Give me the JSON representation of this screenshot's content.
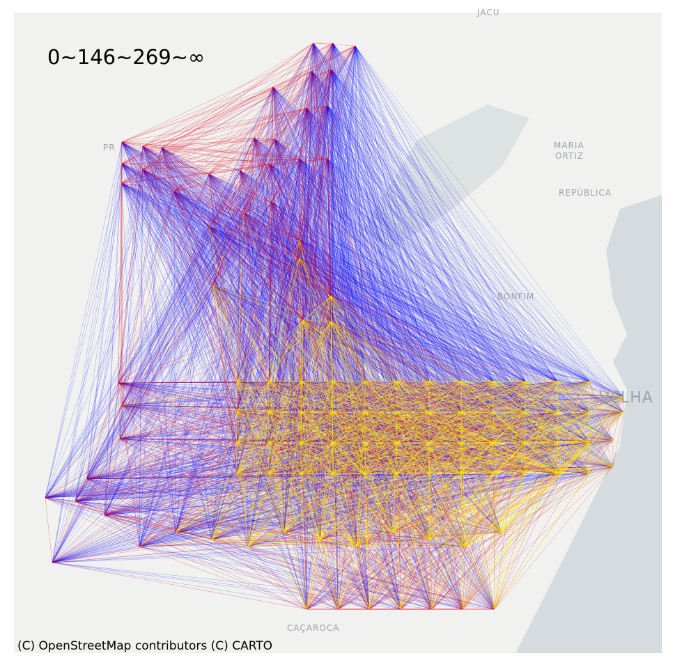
{
  "legend_text": "0~146~269~∞",
  "attribution": "(C) OpenStreetMap contributors (C) CARTO",
  "place_labels": [
    "JACU",
    "PR",
    "MARIA",
    "ORTIZ",
    "REPÚBLICA",
    "BONFIM",
    "VELHA",
    "CAÇAROCA"
  ]
}
